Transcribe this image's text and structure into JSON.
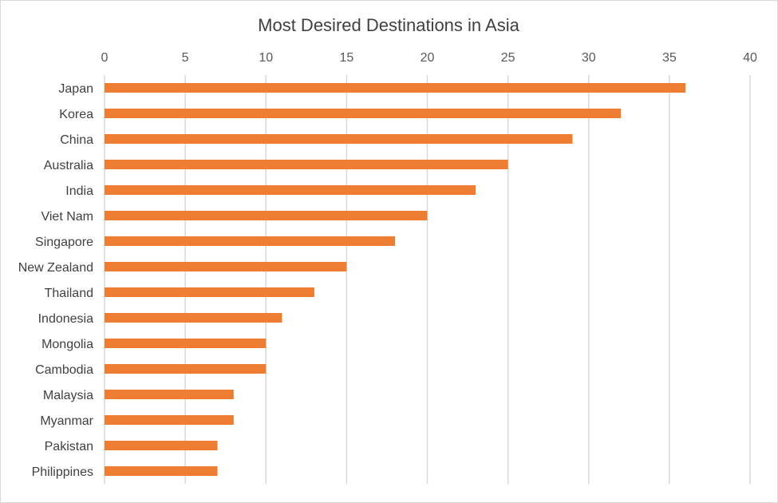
{
  "chart_data": {
    "type": "bar",
    "orientation": "horizontal",
    "title": "Most Desired Destinations in Asia",
    "categories": [
      "Japan",
      "Korea",
      "China",
      "Australia",
      "India",
      "Viet Nam",
      "Singapore",
      "New Zealand",
      "Thailand",
      "Indonesia",
      "Mongolia",
      "Cambodia",
      "Malaysia",
      "Myanmar",
      "Pakistan",
      "Philippines"
    ],
    "values": [
      36,
      32,
      29,
      25,
      23,
      20,
      18,
      15,
      13,
      11,
      10,
      10,
      8,
      8,
      7,
      7
    ],
    "xlim": [
      0,
      40
    ],
    "x_ticks": [
      0,
      5,
      10,
      15,
      20,
      25,
      30,
      35,
      40
    ],
    "x_axis_position": "top",
    "grid": true,
    "legend": "none",
    "bar_color": "#ED7D31",
    "grid_color": "#D9D9D9"
  }
}
